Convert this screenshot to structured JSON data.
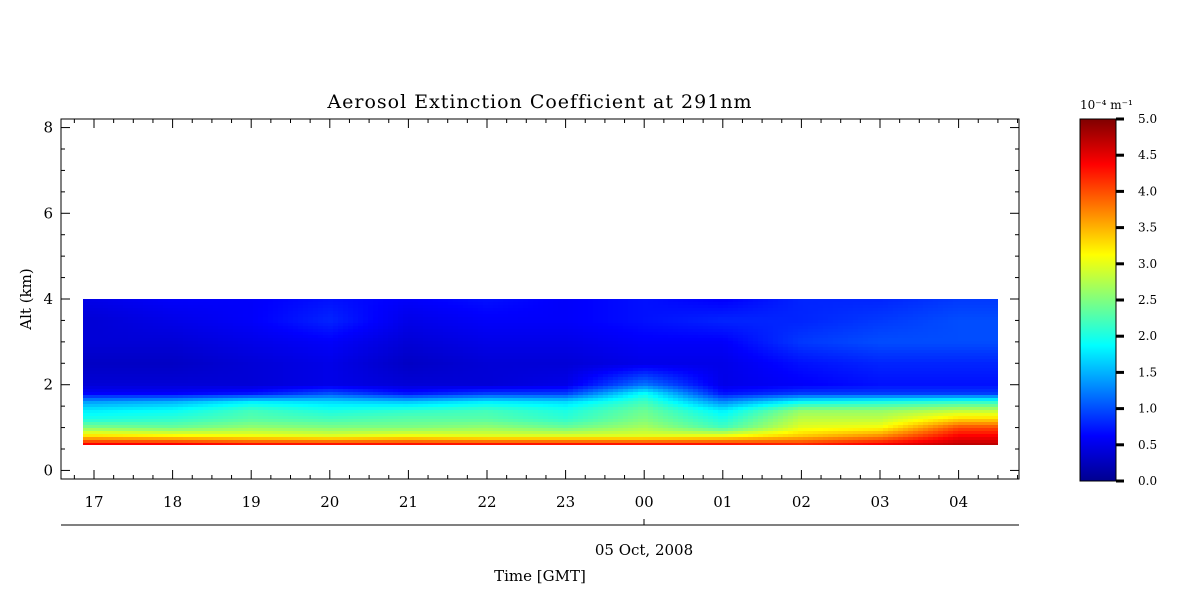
{
  "chart_data": {
    "type": "heatmap",
    "title": "Aerosol Extinction Coefficient at 291nm",
    "ylabel": "Alt (km)",
    "xlabel": "Time [GMT]",
    "date_label": "05 Oct, 2008",
    "x_tick_labels": [
      "17",
      "18",
      "19",
      "20",
      "21",
      "22",
      "23",
      "00",
      "01",
      "02",
      "03",
      "04"
    ],
    "y_tick_labels": [
      "0",
      "2",
      "4",
      "6",
      "8"
    ],
    "ylim": [
      -0.2,
      8.2
    ],
    "data_altitude_range_km": [
      0.6,
      4.0
    ],
    "colorbar": {
      "unit_label": "10⁻⁴ m⁻¹",
      "tick_labels": [
        "0.0",
        "0.5",
        "1.0",
        "1.5",
        "2.0",
        "2.5",
        "3.0",
        "3.5",
        "4.0",
        "4.5",
        "5.0"
      ],
      "range": [
        0,
        5
      ]
    },
    "field_description_values": {
      "altitudes_km": [
        0.6,
        0.8,
        1.0,
        1.2,
        1.4,
        1.6,
        1.8,
        2.0,
        2.5,
        3.0,
        3.5,
        4.0
      ],
      "profiles": [
        {
          "time_label": "17",
          "values": [
            4.4,
            3.3,
            2.5,
            2.0,
            1.8,
            1.4,
            0.6,
            0.4,
            0.3,
            0.4,
            0.4,
            0.5
          ]
        },
        {
          "time_label": "18",
          "values": [
            4.4,
            3.2,
            2.4,
            2.1,
            1.9,
            1.5,
            0.6,
            0.4,
            0.3,
            0.4,
            0.5,
            0.6
          ]
        },
        {
          "time_label": "19",
          "values": [
            4.3,
            3.1,
            2.6,
            2.3,
            2.2,
            1.8,
            0.7,
            0.4,
            0.4,
            0.5,
            0.6,
            0.6
          ]
        },
        {
          "time_label": "20",
          "values": [
            4.3,
            3.0,
            2.5,
            2.2,
            2.0,
            1.7,
            1.0,
            0.5,
            0.5,
            0.6,
            0.8,
            0.7
          ]
        },
        {
          "time_label": "21",
          "values": [
            4.3,
            3.1,
            2.5,
            2.3,
            2.1,
            1.6,
            0.7,
            0.4,
            0.3,
            0.4,
            0.5,
            0.6
          ]
        },
        {
          "time_label": "22",
          "values": [
            4.3,
            3.0,
            2.6,
            2.3,
            2.2,
            1.8,
            0.9,
            0.4,
            0.4,
            0.5,
            0.6,
            0.7
          ]
        },
        {
          "time_label": "23",
          "values": [
            4.3,
            3.0,
            2.4,
            2.1,
            2.0,
            1.7,
            0.9,
            0.5,
            0.4,
            0.5,
            0.6,
            0.6
          ]
        },
        {
          "time_label": "00",
          "values": [
            4.3,
            3.0,
            2.7,
            2.5,
            2.4,
            2.2,
            1.9,
            1.2,
            0.5,
            0.6,
            0.7,
            0.7
          ]
        },
        {
          "time_label": "01",
          "values": [
            4.3,
            3.1,
            2.2,
            2.0,
            1.8,
            1.3,
            0.7,
            0.5,
            0.5,
            0.6,
            0.8,
            0.6
          ]
        },
        {
          "time_label": "02",
          "values": [
            4.2,
            3.4,
            3.0,
            2.8,
            2.6,
            1.9,
            0.9,
            0.6,
            0.7,
            0.9,
            0.8,
            0.8
          ]
        },
        {
          "time_label": "03",
          "values": [
            4.4,
            3.7,
            3.1,
            2.8,
            2.6,
            2.0,
            0.9,
            0.7,
            0.8,
            1.0,
            0.9,
            0.8
          ]
        },
        {
          "time_label": "04",
          "values": [
            4.7,
            4.4,
            4.0,
            3.3,
            2.8,
            2.1,
            0.9,
            0.7,
            0.8,
            1.0,
            1.0,
            0.9
          ]
        }
      ]
    },
    "grid": false
  }
}
